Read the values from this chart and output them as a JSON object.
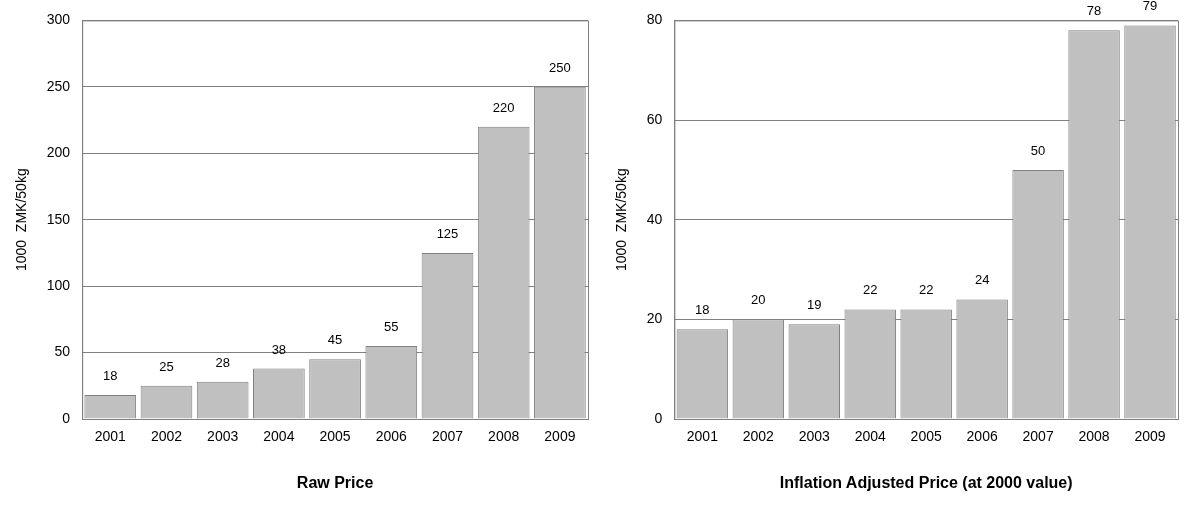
{
  "chart_data": [
    {
      "type": "bar",
      "xlabel": "Raw Price",
      "ylabel": "1000  ZMK/50kg",
      "categories": [
        "2001",
        "2002",
        "2003",
        "2004",
        "2005",
        "2006",
        "2007",
        "2008",
        "2009"
      ],
      "values": [
        18,
        25,
        28,
        38,
        45,
        55,
        125,
        220,
        250
      ],
      "color": "#c0c0c0",
      "ylim": [
        0,
        300
      ],
      "yticks": [
        0,
        50,
        100,
        150,
        200,
        250,
        300
      ],
      "grid": "y",
      "data_labels": true
    },
    {
      "type": "bar",
      "xlabel": "Inflation Adjusted Price (at 2000 value)",
      "ylabel": "1000  ZMK/50kg",
      "categories": [
        "2001",
        "2002",
        "2003",
        "2004",
        "2005",
        "2006",
        "2007",
        "2008",
        "2009"
      ],
      "values": [
        18,
        20,
        19,
        22,
        22,
        24,
        50,
        78,
        79
      ],
      "color": "#c0c0c0",
      "ylim": [
        0,
        80
      ],
      "yticks": [
        0,
        20,
        40,
        60,
        80
      ],
      "grid": "y",
      "data_labels": true
    }
  ]
}
